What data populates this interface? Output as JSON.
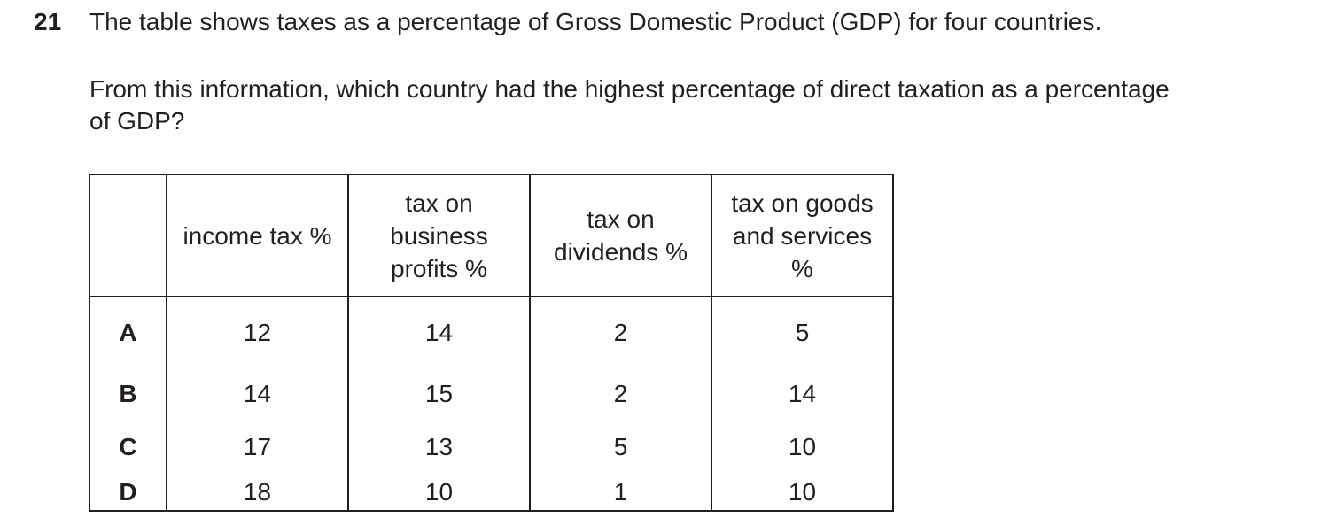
{
  "question": {
    "number": "21",
    "line1": "The table shows taxes as a percentage of Gross Domestic Product (GDP) for four countries.",
    "line2": "From this information, which country had the highest percentage of direct taxation as a percentage",
    "line3": "of GDP?"
  },
  "table": {
    "headers": {
      "blank": "",
      "income_tax": "income tax %",
      "business_profits": [
        "tax on",
        "business",
        "profits %"
      ],
      "dividends": [
        "tax on",
        "dividends %"
      ],
      "goods_services": [
        "tax on goods",
        "and services",
        "%"
      ]
    },
    "rows": [
      {
        "label": "A",
        "income_tax": "12",
        "business_profits": "14",
        "dividends": "2",
        "goods_services": "5"
      },
      {
        "label": "B",
        "income_tax": "14",
        "business_profits": "15",
        "dividends": "2",
        "goods_services": "14"
      },
      {
        "label": "C",
        "income_tax": "17",
        "business_profits": "13",
        "dividends": "5",
        "goods_services": "10"
      },
      {
        "label": "D",
        "income_tax": "18",
        "business_profits": "10",
        "dividends": "1",
        "goods_services": "10"
      }
    ]
  }
}
